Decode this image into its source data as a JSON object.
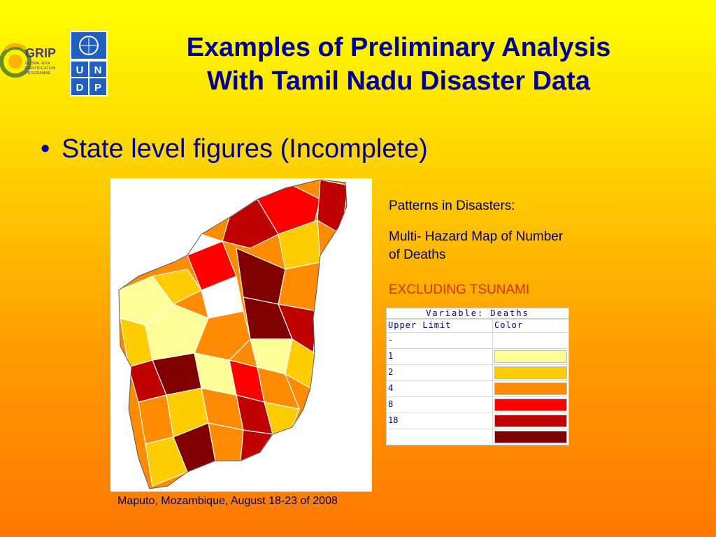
{
  "logos": {
    "grip": {
      "name": "GRIP",
      "subtitle": "GLOBAL RISK IDENTIFICATION PROGRAMME"
    },
    "undp": {
      "letters": [
        "U",
        "N",
        "D",
        "P"
      ]
    }
  },
  "title": {
    "line1": "Examples of Preliminary Analysis",
    "line2": "With Tamil Nadu Disaster Data"
  },
  "bullet": "State level figures (Incomplete)",
  "side": {
    "heading": "Patterns in Disasters:",
    "map_title": "Multi- Hazard Map of Number of Deaths",
    "note": "EXCLUDING TSUNAMI"
  },
  "legend": {
    "title": "Variable:  Deaths",
    "col1": "Upper Limit",
    "col2": "Color",
    "rows": [
      {
        "limit": "-",
        "color": ""
      },
      {
        "limit": "1",
        "color": "#ffff99"
      },
      {
        "limit": "2",
        "color": "#ffcc00"
      },
      {
        "limit": "4",
        "color": "#ff8c00"
      },
      {
        "limit": "8",
        "color": "#ff0000"
      },
      {
        "limit": "18",
        "color": "#c00000"
      },
      {
        "limit": "",
        "color": "#800000"
      }
    ]
  },
  "footer": "Maputo, Mozambique, August 18-23 of 2008"
}
